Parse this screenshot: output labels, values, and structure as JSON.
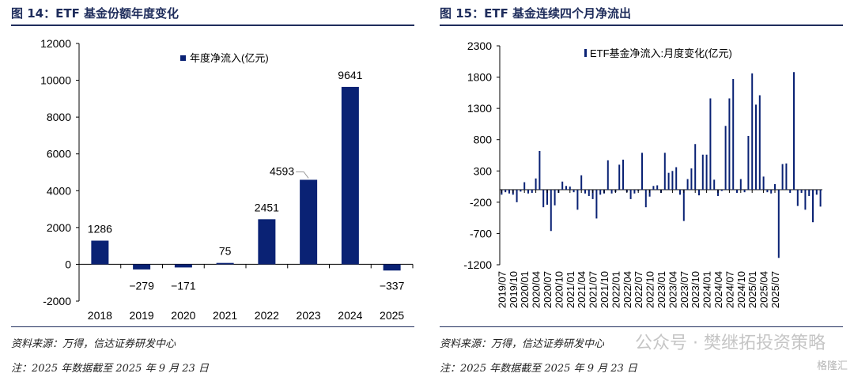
{
  "left": {
    "title": "图 14：ETF 基金份额年度变化",
    "source": "资料来源：万得，信达证券研发中心",
    "note": "注：2025 年数据截至 2025 年 9 月 23 日"
  },
  "right": {
    "title": "图 15：ETF 基金连续四个月净流出",
    "source": "资料来源：万得，信达证券研发中心",
    "note": "注：2025 年数据截至 2025 年 9 月 23 日"
  },
  "watermark": {
    "text": "公众号 · 樊继拓投资策略",
    "corner": "格隆汇"
  },
  "colors": {
    "bar": "#0a2274",
    "title": "#1f2d5c"
  },
  "chart_data": [
    {
      "type": "bar",
      "legend": "年度净流入(亿元)",
      "legend_position": "top",
      "categories": [
        "2018",
        "2019",
        "2020",
        "2021",
        "2022",
        "2023",
        "2024",
        "2025"
      ],
      "series": [
        {
          "name": "年度净流入(亿元)",
          "values": [
            1286,
            -279,
            -171,
            75,
            2451,
            4593,
            9641,
            -337
          ]
        }
      ],
      "ylim": [
        -2000,
        12000
      ],
      "yticks": [
        -2000,
        0,
        2000,
        4000,
        6000,
        8000,
        10000,
        12000
      ],
      "data_labels": [
        "1286",
        "−279",
        "−171",
        "75",
        "2451",
        "4593",
        "9641",
        "−337"
      ],
      "grid": false
    },
    {
      "type": "bar",
      "legend": "ETF基金净流入:月度变化(亿元)",
      "legend_position": "top",
      "x_start": "2019/07",
      "xticks": [
        "2019/07",
        "2019/10",
        "2020/01",
        "2020/04",
        "2020/07",
        "2020/10",
        "2021/01",
        "2021/04",
        "2021/07",
        "2021/10",
        "2022/01",
        "2022/04",
        "2022/07",
        "2022/10",
        "2023/01",
        "2023/04",
        "2023/07",
        "2023/10",
        "2024/01",
        "2024/04",
        "2024/07",
        "2024/10",
        "2025/01",
        "2025/04",
        "2025/07"
      ],
      "series": [
        {
          "name": "ETF基金净流入:月度变化(亿元)",
          "values": [
            -80,
            -40,
            -60,
            -80,
            -200,
            -30,
            120,
            -60,
            -50,
            180,
            620,
            -280,
            -240,
            -660,
            -250,
            -50,
            130,
            60,
            50,
            -40,
            -320,
            230,
            -60,
            -100,
            -150,
            -460,
            -80,
            -60,
            470,
            -60,
            -40,
            400,
            480,
            -40,
            -150,
            -60,
            -20,
            590,
            -280,
            -110,
            60,
            70,
            -50,
            590,
            270,
            300,
            360,
            -80,
            -500,
            170,
            340,
            730,
            -90,
            560,
            560,
            1460,
            160,
            -100,
            -20,
            1020,
            1460,
            1770,
            -50,
            170,
            -40,
            860,
            1860,
            1360,
            1510,
            210,
            -40,
            -60,
            90,
            -1090,
            410,
            420,
            -50,
            1880,
            -260,
            -50,
            -320,
            -100,
            -520,
            -80,
            -270
          ]
        }
      ],
      "ylim": [
        -1200,
        2300
      ],
      "yticks": [
        -1200,
        -700,
        -200,
        300,
        800,
        1300,
        1800,
        2300
      ],
      "grid": false
    }
  ]
}
